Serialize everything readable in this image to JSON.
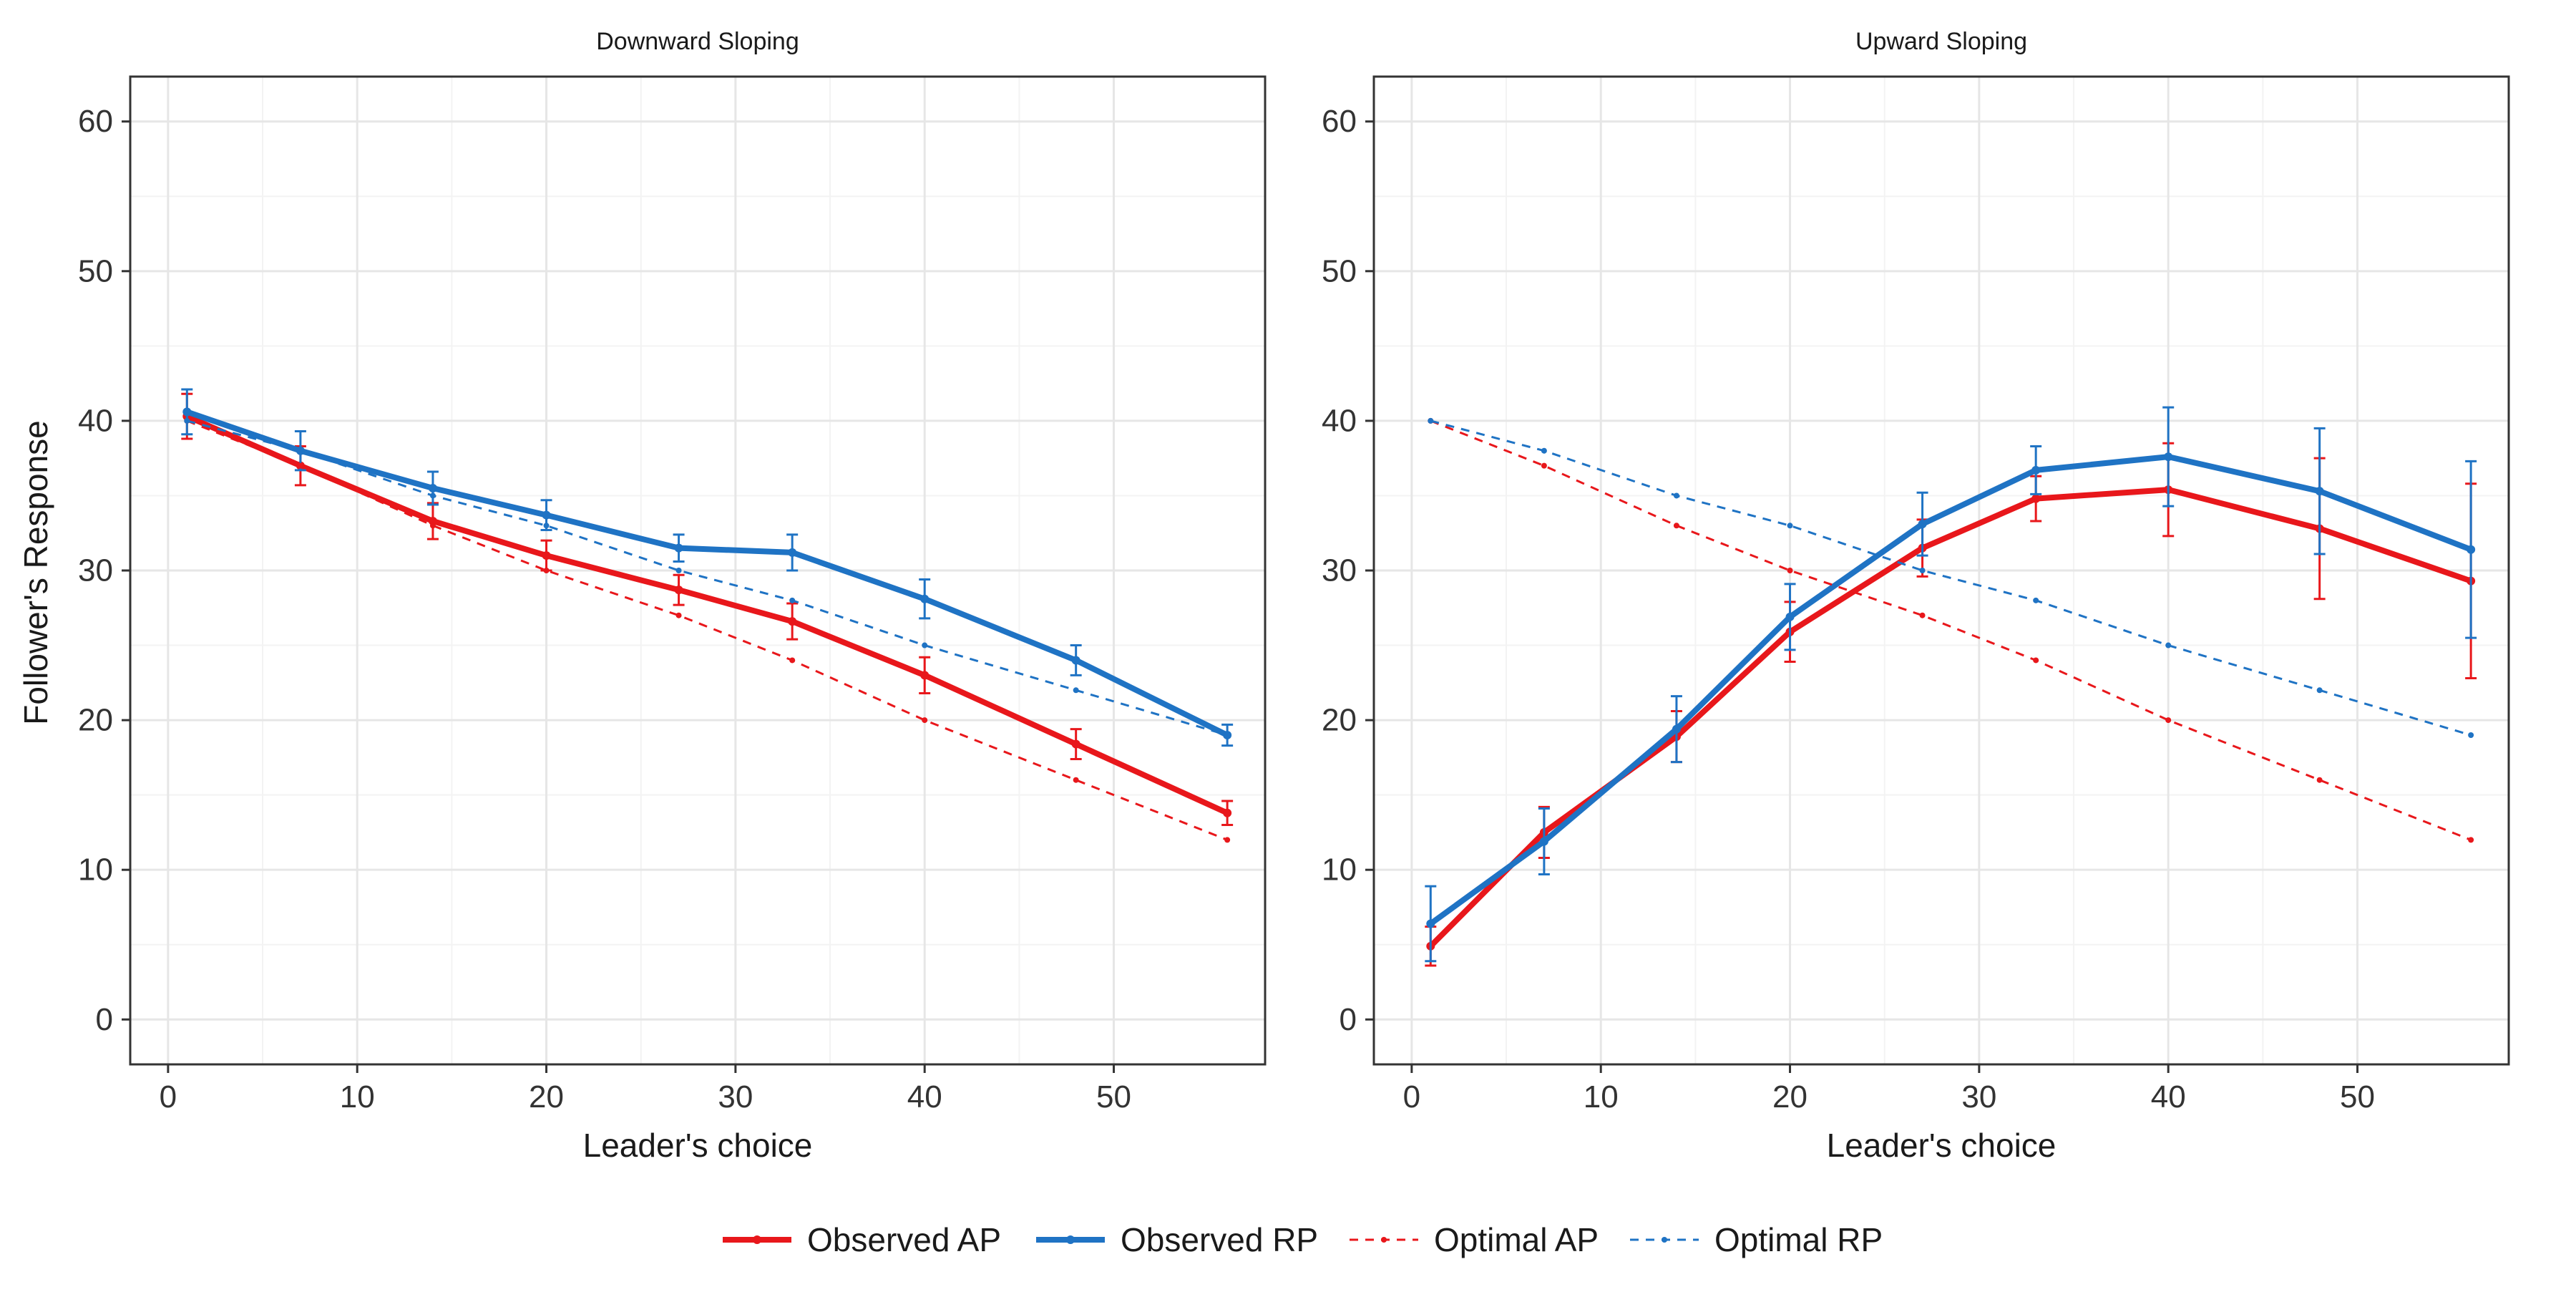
{
  "colors": {
    "ap": "#E8171B",
    "rp": "#1F73C4"
  },
  "y_axis_label": "Follower's Response",
  "legend": [
    {
      "key": "observed_ap",
      "label": "Observed AP"
    },
    {
      "key": "observed_rp",
      "label": "Observed RP"
    },
    {
      "key": "optimal_ap",
      "label": "Optimal AP"
    },
    {
      "key": "optimal_rp",
      "label": "Optimal RP"
    }
  ],
  "chart_data": [
    {
      "type": "line",
      "title": "Downward Sloping",
      "xlabel": "Leader's choice",
      "ylabel": "Follower's Response",
      "xlim": [
        -2,
        58
      ],
      "ylim": [
        -3,
        63
      ],
      "xticks": [
        0,
        10,
        20,
        30,
        40,
        50
      ],
      "yticks": [
        0,
        10,
        20,
        30,
        40,
        50,
        60
      ],
      "grid": true,
      "legend_position": "bottom",
      "x": [
        1,
        7,
        14,
        20,
        27,
        33,
        40,
        48,
        56
      ],
      "series": [
        {
          "name": "Observed AP",
          "color": "ap",
          "style": "solid",
          "values": [
            40.3,
            37.0,
            33.3,
            31.0,
            28.7,
            26.6,
            23.0,
            18.4,
            13.8
          ],
          "error": [
            1.5,
            1.3,
            1.2,
            1.0,
            1.0,
            1.2,
            1.2,
            1.0,
            0.8
          ]
        },
        {
          "name": "Observed RP",
          "color": "rp",
          "style": "solid",
          "values": [
            40.6,
            38.0,
            35.5,
            33.7,
            31.5,
            31.2,
            28.1,
            24.0,
            19.0
          ],
          "error": [
            1.5,
            1.3,
            1.1,
            1.0,
            0.9,
            1.2,
            1.3,
            1.0,
            0.7
          ]
        },
        {
          "name": "Optimal AP",
          "color": "ap",
          "style": "dashed",
          "values": [
            40,
            37,
            33,
            30,
            27,
            24,
            20,
            16,
            12
          ]
        },
        {
          "name": "Optimal RP",
          "color": "rp",
          "style": "dashed",
          "values": [
            40,
            38,
            35,
            33,
            30,
            28,
            25,
            22,
            19
          ]
        }
      ]
    },
    {
      "type": "line",
      "title": "Upward Sloping",
      "xlabel": "Leader's choice",
      "ylabel": "",
      "xlim": [
        -2,
        58
      ],
      "ylim": [
        -3,
        63
      ],
      "xticks": [
        0,
        10,
        20,
        30,
        40,
        50
      ],
      "yticks": [
        0,
        10,
        20,
        30,
        40,
        50,
        60
      ],
      "grid": true,
      "legend_position": "bottom",
      "x": [
        1,
        7,
        14,
        20,
        27,
        33,
        40,
        48,
        56
      ],
      "series": [
        {
          "name": "Observed AP",
          "color": "ap",
          "style": "solid",
          "values": [
            4.9,
            12.5,
            18.9,
            25.9,
            31.5,
            34.8,
            35.4,
            32.8,
            29.3
          ],
          "error": [
            1.3,
            1.7,
            1.7,
            2.0,
            1.9,
            1.5,
            3.1,
            4.7,
            6.5
          ]
        },
        {
          "name": "Observed RP",
          "color": "rp",
          "style": "solid",
          "values": [
            6.4,
            11.9,
            19.4,
            26.9,
            33.1,
            36.7,
            37.6,
            35.3,
            31.4
          ],
          "error": [
            2.5,
            2.2,
            2.2,
            2.2,
            2.1,
            1.6,
            3.3,
            4.2,
            5.9
          ]
        },
        {
          "name": "Optimal AP",
          "color": "ap",
          "style": "dashed",
          "values": [
            40,
            37,
            33,
            30,
            27,
            24,
            20,
            16,
            12
          ]
        },
        {
          "name": "Optimal RP",
          "color": "rp",
          "style": "dashed",
          "values": [
            40,
            38,
            35,
            33,
            30,
            28,
            25,
            22,
            19
          ]
        }
      ]
    }
  ]
}
